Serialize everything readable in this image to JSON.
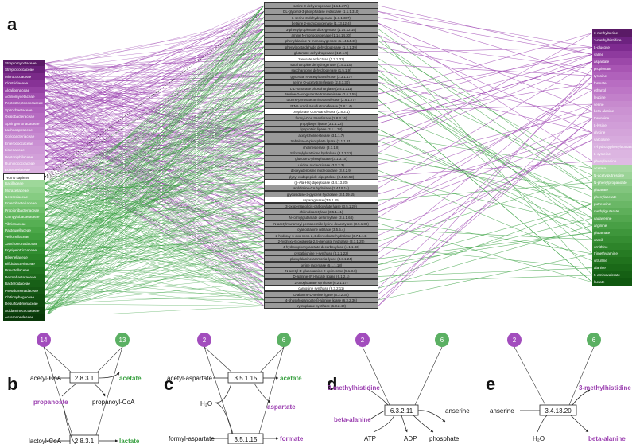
{
  "panels": {
    "a": "a",
    "b": "b",
    "c": "c",
    "d": "d",
    "e": "e"
  },
  "families": [
    {
      "name": "Streptomycetaceae",
      "color": "#5a1a66"
    },
    {
      "name": "Streptococcaceae",
      "color": "#6a2079"
    },
    {
      "name": "Micrococcaceae",
      "color": "#7a2a88"
    },
    {
      "name": "Clostridiaceae",
      "color": "#873296"
    },
    {
      "name": "Alcaligenaceae",
      "color": "#9540a3"
    },
    {
      "name": "Actinomycetaceae",
      "color": "#9f4cad"
    },
    {
      "name": "Peptostreptococcaceae",
      "color": "#a857b5"
    },
    {
      "name": "Spirochaetaceae",
      "color": "#b062bc"
    },
    {
      "name": "Oxalobacteraceae",
      "color": "#b66bc1"
    },
    {
      "name": "Sphingomonadaceae",
      "color": "#bb74c6"
    },
    {
      "name": "Lachnospiraceae",
      "color": "#c17fcb"
    },
    {
      "name": "Coriobacteriaceae",
      "color": "#c688cf"
    },
    {
      "name": "Enterococcaceae",
      "color": "#ca90d3"
    },
    {
      "name": "Listeriaceae",
      "color": "#ce98d6"
    },
    {
      "name": "Peptoniphilaceae",
      "color": "#d2a0d9"
    },
    {
      "name": "Ruminococcaceae",
      "color": "#d6a8dc"
    },
    {
      "name": "Eubacteriaceae",
      "color": "#daafdf"
    },
    {
      "name": "Homo sapiens",
      "color": "#ffffff"
    },
    {
      "name": "Bacillaceae",
      "color": "#9ed89a"
    },
    {
      "name": "Moraxellaceae",
      "color": "#92d28e"
    },
    {
      "name": "Neisseriaceae",
      "color": "#86cc82"
    },
    {
      "name": "Enterobacteriaceae",
      "color": "#7ac576"
    },
    {
      "name": "Propionibacteriaceae",
      "color": "#6ebe6a"
    },
    {
      "name": "Campylobacteraceae",
      "color": "#62b75e"
    },
    {
      "name": "Vibrionaceae",
      "color": "#56af53"
    },
    {
      "name": "Pasteurellaceae",
      "color": "#4ba748"
    },
    {
      "name": "Veillonellaceae",
      "color": "#419f3f"
    },
    {
      "name": "Xanthomonadaceae",
      "color": "#399637"
    },
    {
      "name": "Erysipelotrichaceae",
      "color": "#318d30"
    },
    {
      "name": "Rikenellaceae",
      "color": "#2b8429"
    },
    {
      "name": "Bifidobacteriaceae",
      "color": "#257b24"
    },
    {
      "name": "Prevotellaceae",
      "color": "#20721f"
    },
    {
      "name": "Dermabacteraceae",
      "color": "#1c691b"
    },
    {
      "name": "Bacteroidaceae",
      "color": "#186017"
    },
    {
      "name": "Pseudomonadaceae",
      "color": "#155814"
    },
    {
      "name": "Chitinophagaceae",
      "color": "#125011"
    },
    {
      "name": "Desulfovibrionaceae",
      "color": "#0f480e"
    },
    {
      "name": "Acidaminococcaceae",
      "color": "#0c400c"
    },
    {
      "name": "Aeromonadaceae",
      "color": "#0a380a"
    }
  ],
  "enzymes": [
    {
      "name": "serine 3-dehydrogenase (1.1.1.276)",
      "color": "#9a9a9a"
    },
    {
      "name": "DL-glycerol-3-phosphatase reductase (1.1.1.310)",
      "color": "#9a9a9a"
    },
    {
      "name": "L-serine 3-dehydrogenase (1.1.1.387)",
      "color": "#9a9a9a"
    },
    {
      "name": "betaine 2-monooxygenase (1.13.12.4)",
      "color": "#9a9a9a"
    },
    {
      "name": "3-phenylpropionate dioxygenase (1.14.12.19)",
      "color": "#9a9a9a"
    },
    {
      "name": "amine N-monooxygenase (1.14.14.30)",
      "color": "#9a9a9a"
    },
    {
      "name": "phenylalanine N-monooxygenase (1.14.14.40)",
      "color": "#9a9a9a"
    },
    {
      "name": "phenylacetaldehyde dehydrogenase (1.2.1.39)",
      "color": "#9a9a9a"
    },
    {
      "name": "glutamate dehydrogenase (1.2.1.5)",
      "color": "#9a9a9a"
    },
    {
      "name": "2-enoate reductase (1.3.1.31)",
      "color": "#ffffff"
    },
    {
      "name": "saccharopine dehydrogenase (1.5.1.10)",
      "color": "#9a9a9a"
    },
    {
      "name": "saccharopine dehydrogenase (1.5.1.9)",
      "color": "#9a9a9a"
    },
    {
      "name": "glycerate N-acetyltransferase (2.3.1.17)",
      "color": "#9a9a9a"
    },
    {
      "name": "serine O-acetyltransferase (2.3.1.30)",
      "color": "#9a9a9a"
    },
    {
      "name": "L-L-fumarase phosphorylase (2.4.1.211)",
      "color": "#9a9a9a"
    },
    {
      "name": "taurine-2-oxoglutarate transaminase (2.6.1.55)",
      "color": "#9a9a9a"
    },
    {
      "name": "taurine-pyruvate aminotransferase (2.6.1.77)",
      "color": "#9a9a9a"
    },
    {
      "name": "tRNA uracil 4-sulfurtransferase (2.8.1.4)",
      "color": "#9a9a9a"
    },
    {
      "name": "propionate CoA-transferase (2.8.3.1)",
      "color": "#ffffff"
    },
    {
      "name": "formyl-CoA transferase (2.8.3.16)",
      "color": "#9a9a9a"
    },
    {
      "name": "propylbuyrl lipase (3.1.1.23)",
      "color": "#9a9a9a"
    },
    {
      "name": "lipoprotein lipase (3.1.1.34)",
      "color": "#9a9a9a"
    },
    {
      "name": "acetylcholinesterase (3.1.1.7)",
      "color": "#9a9a9a"
    },
    {
      "name": "trehalose-6-phosphate lipase (3.1.1.81)",
      "color": "#9a9a9a"
    },
    {
      "name": "cholinesterase (3.1.1.8)",
      "color": "#9a9a9a"
    },
    {
      "name": "S-formylglutathione hydrolase (3.1.2.12)",
      "color": "#9a9a9a"
    },
    {
      "name": "glucose 1-phosphatase (3.1.3.10)",
      "color": "#9a9a9a"
    },
    {
      "name": "uridine nucleosidase (3.2.2.3)",
      "color": "#9a9a9a"
    },
    {
      "name": "deoxyadenosine nucleosidase (3.2.2.9)",
      "color": "#9a9a9a"
    },
    {
      "name": "glycyl endopeptide dipeptidase (3.4.15.59)",
      "color": "#9a9a9a"
    },
    {
      "name": "(β-Ala-His) dipeptidase (3.4.13.20)",
      "color": "#ffffff"
    },
    {
      "name": "aryldimino-CA hydrolase (3.4.19.14)",
      "color": "#9a9a9a"
    },
    {
      "name": "glycosidase-3-glycerol hydrolase (3.4.19.15)",
      "color": "#9a9a9a"
    },
    {
      "name": "asparaginase (3.5.1.15)",
      "color": "#ffffff"
    },
    {
      "name": "3-oxopentanol cis-carboxylate lyase (3.5.1.20)",
      "color": "#9a9a9a"
    },
    {
      "name": "chitin deacetylase (3.5.1.41)",
      "color": "#9a9a9a"
    },
    {
      "name": "N-formylglutamate deformylase (3.5.1.68)",
      "color": "#9a9a9a"
    },
    {
      "name": "N-acetylmuramoyl-pentapeptide-lysine deacetylase (3.5.1.88)",
      "color": "#9a9a9a"
    },
    {
      "name": "cyanoalanine nitrilase (3.5.5.4)",
      "color": "#9a9a9a"
    },
    {
      "name": "2-hydroxy-6-oxo-nona-2,4-dienedioate hydrolase (3.7.1.14)",
      "color": "#9a9a9a"
    },
    {
      "name": "2-hydroxy-6-oxohepta-2,4-dienoate hydrolase (3.7.1.25)",
      "color": "#9a9a9a"
    },
    {
      "name": "4-hydroxyphenylacetate decarboxylase (4.1.1.83)",
      "color": "#9a9a9a"
    },
    {
      "name": "cystathionine γ-synthase (4.2.1.22)",
      "color": "#9a9a9a"
    },
    {
      "name": "phenylalanine ammonia-lyase (4.3.1.24)",
      "color": "#9a9a9a"
    },
    {
      "name": "serine racemase (5.1.1.18)",
      "color": "#9a9a9a"
    },
    {
      "name": "N-acetyl-D-glucosamine 2-epimerase (5.1.3.8)",
      "color": "#9a9a9a"
    },
    {
      "name": "D-alanine-(R)-lactate ligase (6.1.2.1)",
      "color": "#9a9a9a"
    },
    {
      "name": "2-oxoglutarate synthase (6.2.1.17)",
      "color": "#9a9a9a"
    },
    {
      "name": "carnosine synthase (6.3.2.11)",
      "color": "#ffffff"
    },
    {
      "name": "D-alanine-D-serine ligase (6.3.2.35)",
      "color": "#9a9a9a"
    },
    {
      "name": "4-phosphopantoate-β-alanine ligase (6.3.2.36)",
      "color": "#9a9a9a"
    },
    {
      "name": "tryptophane synthase (6.3.2.40)",
      "color": "#9a9a9a"
    }
  ],
  "metabolites": [
    {
      "name": "3-methylserine",
      "color": "#5a1a66"
    },
    {
      "name": "3-methylhistidine",
      "color": "#6d2280"
    },
    {
      "name": "L-glucose",
      "color": "#7e2b90"
    },
    {
      "name": "valine",
      "color": "#8e3a9e"
    },
    {
      "name": "aspartate",
      "color": "#9c48a9"
    },
    {
      "name": "propionate",
      "color": "#a855b3"
    },
    {
      "name": "tyrosine",
      "color": "#b061bb"
    },
    {
      "name": "formate",
      "color": "#b86dc2"
    },
    {
      "name": "ethanol",
      "color": "#bd76c6"
    },
    {
      "name": "leucine",
      "color": "#c280ca"
    },
    {
      "name": "serine",
      "color": "#c78ace"
    },
    {
      "name": "beta-alanine",
      "color": "#cb92d2"
    },
    {
      "name": "threonine",
      "color": "#ce98d5"
    },
    {
      "name": "L-lysine",
      "color": "#d19ed8"
    },
    {
      "name": "glycine",
      "color": "#d4a4da"
    },
    {
      "name": "sarcosine",
      "color": "#d7aadd"
    },
    {
      "name": "4-hydroxyphenylacetate",
      "color": "#d9b0df"
    },
    {
      "name": "L-cysteine",
      "color": "#dcb5e1"
    },
    {
      "name": "phenylalanine",
      "color": "#debae3"
    },
    {
      "name": "acetate",
      "color": "#a6d8a2"
    },
    {
      "name": "N-acetylputrescine",
      "color": "#9bd397"
    },
    {
      "name": "N-phenylpropanoate",
      "color": "#8ecc8a"
    },
    {
      "name": "glutarate",
      "color": "#82c57e"
    },
    {
      "name": "phenylacetate",
      "color": "#76be72"
    },
    {
      "name": "putrescine",
      "color": "#6ab766"
    },
    {
      "name": "methylglutarate",
      "color": "#5eaf5a"
    },
    {
      "name": "cadaverine",
      "color": "#53a74f"
    },
    {
      "name": "arginine",
      "color": "#489f45"
    },
    {
      "name": "glutamate",
      "color": "#3e963b"
    },
    {
      "name": "uracil",
      "color": "#358d32"
    },
    {
      "name": "ornithine",
      "color": "#2d842a"
    },
    {
      "name": "trimethylamine",
      "color": "#267b23"
    },
    {
      "name": "citrulline",
      "color": "#20721d"
    },
    {
      "name": "alanine",
      "color": "#1a6918"
    },
    {
      "name": "5-aminovalerate",
      "color": "#156014"
    },
    {
      "name": "lactate",
      "color": "#105810"
    }
  ],
  "pathways": {
    "b": {
      "nodes": {
        "left": "14",
        "right": "13"
      },
      "enzyme_top": "2.8.3.1",
      "enzyme_bottom": "2.8.3.1",
      "acetyl_coa": "acetyl-CoA",
      "acetate": "acetate",
      "propanoate": "propanoate",
      "propanoyl_coa": "propanoyl-CoA",
      "lactoyl_coa": "lactoyl-CoA",
      "lactate": "lactate"
    },
    "c": {
      "nodes": {
        "left": "2",
        "right": "6"
      },
      "enzyme_top": "3.5.1.15",
      "enzyme_bottom": "3.5.1.15",
      "acetyl_aspartate": "acetyl-aspartate",
      "acetate": "acetate",
      "h2o": "H₂O",
      "aspartate": "aspartate",
      "formyl_aspartate": "formyl-aspartate",
      "formate": "formate"
    },
    "d": {
      "nodes": {
        "left": "2",
        "right": "6"
      },
      "enzyme": "6.3.2.11",
      "methylhistidine": "3-methylhistidine",
      "beta_alanine": "beta-alanine",
      "anserine": "anserine",
      "atp": "ATP",
      "adp": "ADP",
      "phosphate": "phosphate"
    },
    "e": {
      "nodes": {
        "left": "2",
        "right": "6"
      },
      "enzyme": "3.4.13.20",
      "anserine": "anserine",
      "h2o": "H₂O",
      "methylhistidine": "3-methylhistidine",
      "beta_alanine": "beta-alanine"
    }
  },
  "colors": {
    "purple": "#9b3fb0",
    "green": "#3aa142",
    "node_purple": "#a24dbd",
    "node_green": "#5bb063",
    "black": "#111111"
  }
}
